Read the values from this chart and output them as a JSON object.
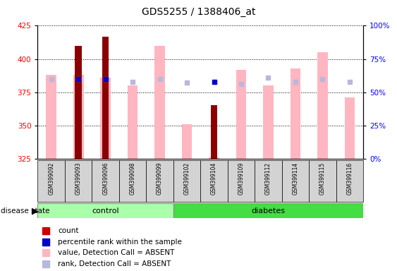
{
  "title": "GDS5255 / 1388406_at",
  "samples": [
    "GSM399092",
    "GSM399093",
    "GSM399096",
    "GSM399098",
    "GSM399099",
    "GSM399102",
    "GSM399104",
    "GSM399109",
    "GSM399112",
    "GSM399114",
    "GSM399115",
    "GSM399116"
  ],
  "groups": [
    "control",
    "control",
    "control",
    "control",
    "control",
    "diabetes",
    "diabetes",
    "diabetes",
    "diabetes",
    "diabetes",
    "diabetes",
    "diabetes"
  ],
  "count_values": [
    null,
    410,
    417,
    null,
    null,
    null,
    365,
    null,
    null,
    null,
    null,
    null
  ],
  "value_absent": [
    388,
    388,
    386,
    380,
    410,
    351,
    326,
    392,
    380,
    393,
    405,
    371
  ],
  "rank_absent": [
    385,
    385,
    385,
    383,
    385,
    382,
    383,
    381,
    386,
    383,
    385,
    383
  ],
  "percentile_rank": [
    null,
    385,
    385,
    null,
    null,
    null,
    383,
    null,
    null,
    null,
    null,
    null
  ],
  "ylim_left": [
    325,
    425
  ],
  "ylim_right": [
    0,
    100
  ],
  "yticks_left": [
    325,
    350,
    375,
    400,
    425
  ],
  "yticks_right": [
    0,
    25,
    50,
    75,
    100
  ],
  "color_count": "#8B0000",
  "color_percentile": "#0000CC",
  "color_value_absent": "#FFB6C1",
  "color_rank_absent": "#B8B8DC",
  "control_color": "#AAFFAA",
  "diabetes_color": "#44DD44",
  "legend_items": [
    {
      "label": "count",
      "color": "#CC0000",
      "marker": "s"
    },
    {
      "label": "percentile rank within the sample",
      "color": "#0000CC",
      "marker": "s"
    },
    {
      "label": "value, Detection Call = ABSENT",
      "color": "#FFB6C1",
      "marker": "s"
    },
    {
      "label": "rank, Detection Call = ABSENT",
      "color": "#B8B8DC",
      "marker": "s"
    }
  ],
  "bar_width": 0.25,
  "pink_bar_width": 0.38,
  "disease_state_label": "disease state",
  "control_label": "control",
  "diabetes_label": "diabetes",
  "n_control": 5,
  "n_diabetes": 7
}
